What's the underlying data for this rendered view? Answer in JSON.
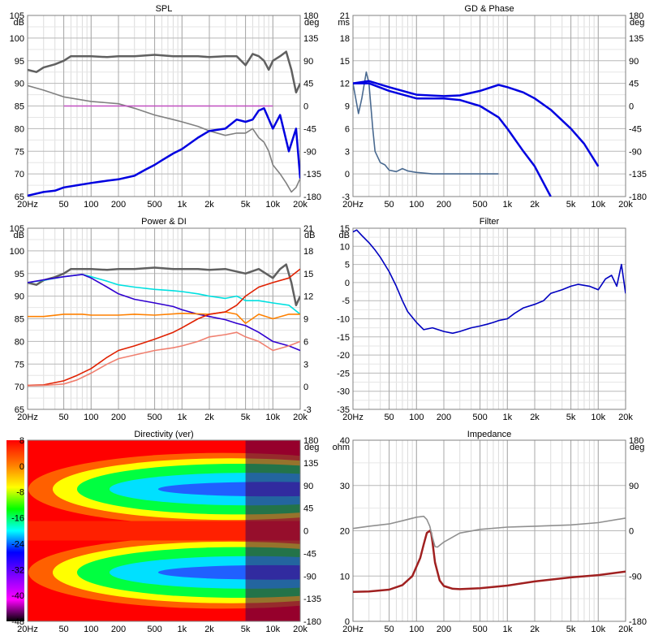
{
  "x_ticks": [
    "20Hz",
    "50",
    "100",
    "200",
    "500",
    "1k",
    "2k",
    "5k",
    "10k",
    "20k"
  ],
  "chart_data": [
    {
      "type": "line",
      "title": "SPL",
      "left_unit": "dB",
      "right_unit": "deg",
      "xlim": [
        20,
        20000
      ],
      "xscale": "log",
      "ylim": [
        65,
        105
      ],
      "yticks_left": [
        "65",
        "70",
        "75",
        "80",
        "85",
        "90",
        "95",
        "100",
        "105"
      ],
      "yticks_right": [
        "-180",
        "-135",
        "-90",
        "-45",
        "0",
        "45",
        "90",
        "135",
        "180"
      ],
      "grid": true,
      "series": [
        {
          "color": "#606060",
          "x": [
            20,
            25,
            30,
            40,
            50,
            60,
            80,
            100,
            150,
            200,
            300,
            500,
            800,
            1000,
            1500,
            2000,
            3000,
            4000,
            5000,
            6000,
            7000,
            8000,
            9000,
            10000,
            12000,
            14000,
            16000,
            18000,
            20000
          ],
          "y": [
            93,
            92.5,
            93.5,
            94.2,
            95,
            96,
            96,
            96,
            95.8,
            96,
            96,
            96.3,
            96,
            96,
            96,
            95.8,
            96,
            96,
            94,
            96.5,
            96,
            95,
            93,
            95,
            96,
            97,
            93,
            88,
            90
          ]
        },
        {
          "color": "#808080",
          "x": [
            20,
            30,
            50,
            100,
            200,
            300,
            500,
            800,
            1000,
            1500,
            2000,
            3000,
            4000,
            5000,
            6000,
            7000,
            8000,
            9000,
            10000,
            12000,
            14000,
            16000,
            18000,
            20000
          ],
          "y": [
            89.5,
            88.5,
            87,
            86,
            85.5,
            84.5,
            83,
            82,
            81.5,
            80.5,
            79.5,
            78.5,
            79,
            79,
            80,
            78,
            77,
            75,
            72,
            70,
            68,
            66,
            67,
            69
          ]
        },
        {
          "color": "#c050c0",
          "x": [
            50,
            10000
          ],
          "y": [
            85,
            85
          ]
        },
        {
          "color": "#0000e0",
          "x": [
            20,
            30,
            40,
            50,
            70,
            100,
            150,
            200,
            300,
            400,
            500,
            600,
            800,
            1000,
            1500,
            2000,
            3000,
            4000,
            5000,
            6000,
            7000,
            8000,
            10000,
            12000,
            15000,
            18000,
            20000
          ],
          "y": [
            65.2,
            66,
            66.3,
            67,
            67.5,
            68,
            68.5,
            68.8,
            69.6,
            71,
            72,
            73,
            74.5,
            75.5,
            78,
            79.5,
            80,
            82,
            81.5,
            82,
            84,
            84.5,
            80,
            83,
            75,
            80,
            69
          ]
        }
      ]
    },
    {
      "type": "line",
      "title": "GD & Phase",
      "left_unit": "ms",
      "right_unit": "deg",
      "xlim": [
        20,
        20000
      ],
      "xscale": "log",
      "ylim": [
        -3,
        21
      ],
      "yticks_left": [
        "-3",
        "0",
        "3",
        "6",
        "9",
        "12",
        "15",
        "18",
        "21"
      ],
      "yticks_right": [
        "-180",
        "-135",
        "-90",
        "-45",
        "0",
        "45",
        "90",
        "135",
        "180"
      ],
      "grid": true,
      "series": [
        {
          "color": "#4a6a90",
          "x": [
            20,
            23,
            25,
            28,
            30,
            33,
            35,
            40,
            45,
            50,
            60,
            70,
            80,
            100,
            150,
            200,
            300,
            500,
            800
          ],
          "y": [
            12,
            8,
            10,
            13.5,
            12,
            6,
            3,
            1.5,
            1.2,
            0.5,
            0.3,
            0.7,
            0.4,
            0.2,
            0,
            0,
            0,
            0,
            0
          ]
        },
        {
          "color": "#0000e0",
          "x": [
            20,
            30,
            50,
            100,
            200,
            300,
            500,
            800,
            1000,
            1500,
            2000,
            3000,
            5000,
            7000,
            10000
          ],
          "y": [
            12,
            12.3,
            11.5,
            10.5,
            10.3,
            10.4,
            11,
            11.8,
            11.5,
            10.8,
            10,
            8.5,
            6,
            4,
            1
          ]
        },
        {
          "color": "#0000e0",
          "x": [
            20,
            30,
            50,
            100,
            200,
            300,
            500,
            800,
            1000,
            1500,
            2000,
            3000
          ],
          "y": [
            12,
            12,
            11,
            10,
            10,
            9.8,
            9,
            7.5,
            6,
            3,
            1,
            -3
          ]
        }
      ]
    },
    {
      "type": "line",
      "title": "Power & DI",
      "left_unit": "dB",
      "right_unit": "dB",
      "xlim": [
        20,
        20000
      ],
      "xscale": "log",
      "ylim": [
        65,
        105
      ],
      "yticks_left": [
        "65",
        "70",
        "75",
        "80",
        "85",
        "90",
        "95",
        "100",
        "105"
      ],
      "yticks_right": [
        "-3",
        "0",
        "3",
        "6",
        "9",
        "12",
        "15",
        "18",
        "21"
      ],
      "grid": true,
      "series": [
        {
          "color": "#606060",
          "x": [
            20,
            25,
            30,
            40,
            50,
            60,
            80,
            100,
            150,
            200,
            300,
            500,
            800,
            1000,
            1500,
            2000,
            3000,
            5000,
            7000,
            10000,
            12000,
            14000,
            16000,
            18000,
            20000
          ],
          "y": [
            93,
            92.5,
            93.5,
            94.2,
            95,
            96,
            96,
            96,
            95.8,
            96,
            96,
            96.3,
            96,
            96,
            96,
            95.8,
            96,
            95,
            96,
            94,
            96,
            97,
            93,
            88,
            90
          ]
        },
        {
          "color": "#00e0e0",
          "x": [
            20,
            30,
            50,
            80,
            100,
            150,
            200,
            300,
            500,
            800,
            1000,
            1500,
            2000,
            3000,
            4000,
            5000,
            7000,
            10000,
            15000,
            20000
          ],
          "y": [
            93,
            93.5,
            94.3,
            94.8,
            94.3,
            93.3,
            92.5,
            92,
            91.5,
            91.2,
            91,
            90.5,
            90,
            89.5,
            90,
            89,
            89,
            88.5,
            88,
            86
          ]
        },
        {
          "color": "#3000d0",
          "x": [
            20,
            30,
            50,
            80,
            100,
            150,
            200,
            300,
            500,
            800,
            1000,
            1500,
            2000,
            3000,
            4000,
            5000,
            7000,
            10000,
            15000,
            20000
          ],
          "y": [
            93,
            93.6,
            94.3,
            94.8,
            94,
            92,
            90.5,
            89.3,
            88.5,
            87.7,
            87,
            86,
            85.5,
            84.8,
            84,
            83.5,
            82,
            80,
            79,
            78
          ]
        },
        {
          "color": "#ff8000",
          "x": [
            20,
            30,
            50,
            80,
            100,
            200,
            300,
            500,
            1000,
            2000,
            3000,
            4000,
            5000,
            7000,
            10000,
            15000,
            20000
          ],
          "y": [
            85.5,
            85.5,
            86,
            86,
            85.8,
            85.8,
            86,
            85.8,
            86.2,
            86,
            86.5,
            86,
            84,
            86,
            85,
            86,
            86
          ]
        },
        {
          "color": "#e02000",
          "x": [
            20,
            30,
            50,
            70,
            100,
            150,
            200,
            300,
            500,
            800,
            1000,
            1500,
            2000,
            3000,
            4000,
            5000,
            7000,
            10000,
            15000,
            20000
          ],
          "y": [
            70.3,
            70.4,
            71.3,
            72.5,
            74,
            76.5,
            78,
            79,
            80.5,
            82,
            83,
            85,
            86,
            86.5,
            88,
            90,
            92,
            93,
            94,
            96
          ]
        },
        {
          "color": "#f08070",
          "x": [
            20,
            30,
            50,
            70,
            100,
            150,
            200,
            300,
            500,
            800,
            1000,
            1500,
            2000,
            3000,
            4000,
            5000,
            7000,
            10000,
            15000,
            20000
          ],
          "y": [
            70.2,
            70.3,
            70.6,
            71.5,
            73,
            75,
            76.2,
            77,
            78,
            78.6,
            79,
            80,
            81,
            81.5,
            82,
            81,
            80,
            78,
            79,
            80
          ]
        }
      ]
    },
    {
      "type": "line",
      "title": "Filter",
      "left_unit": "dB",
      "right_unit": "",
      "xlim": [
        20,
        20000
      ],
      "xscale": "log",
      "ylim": [
        -35,
        15
      ],
      "yticks_left": [
        "-35",
        "-30",
        "-25",
        "-20",
        "-15",
        "-10",
        "-5",
        "0",
        "5",
        "10",
        "15"
      ],
      "yticks_right": [],
      "grid": true,
      "series": [
        {
          "color": "#0000c0",
          "x": [
            20,
            22,
            25,
            30,
            35,
            40,
            50,
            60,
            70,
            80,
            100,
            120,
            150,
            200,
            250,
            300,
            400,
            500,
            600,
            700,
            800,
            1000,
            1200,
            1500,
            2000,
            2500,
            3000,
            4000,
            5000,
            6000,
            8000,
            10000,
            12000,
            14000,
            16000,
            18000,
            20000
          ],
          "y": [
            14,
            14.5,
            13,
            11,
            9,
            7,
            3,
            -1,
            -5,
            -8,
            -11,
            -13,
            -12.5,
            -13.5,
            -14,
            -13.5,
            -12.5,
            -12,
            -11.5,
            -11,
            -10.5,
            -10,
            -8.5,
            -7,
            -6,
            -5,
            -3,
            -2,
            -1,
            -0.5,
            -1,
            -2,
            1,
            2,
            -1,
            5,
            -3
          ]
        }
      ]
    },
    {
      "type": "heatmap",
      "title": "Directivity (ver)",
      "left_unit": "",
      "right_unit": "deg",
      "xlim": [
        20,
        20000
      ],
      "xscale": "log",
      "ylim": [
        -180,
        180
      ],
      "yticks_left": [
        "-48",
        "-40",
        "-32",
        "-24",
        "-16",
        "-8",
        "0",
        "8"
      ],
      "yticks_right": [
        "-180",
        "-135",
        "-90",
        "-45",
        "0",
        "45",
        "90",
        "135",
        "180"
      ],
      "color_scale": [
        "#ff0000",
        "#ff8000",
        "#ffff00",
        "#00ff00",
        "#00ffff",
        "#0000ff",
        "#8000ff",
        "#ff00ff",
        "#000000"
      ],
      "color_range": [
        -48,
        8
      ],
      "grid": false
    },
    {
      "type": "line",
      "title": "Impedance",
      "left_unit": "ohm",
      "right_unit": "deg",
      "xlim": [
        20,
        20000
      ],
      "xscale": "log",
      "ylim": [
        0,
        40
      ],
      "yticks_left": [
        "0",
        "10",
        "20",
        "30",
        "40"
      ],
      "yticks_right": [
        "-180",
        "-90",
        "0",
        "90",
        "180"
      ],
      "grid": true,
      "series": [
        {
          "color": "#a02020",
          "x": [
            20,
            30,
            50,
            70,
            90,
            110,
            120,
            130,
            140,
            145,
            150,
            160,
            180,
            200,
            250,
            300,
            500,
            1000,
            2000,
            5000,
            10000,
            20000
          ],
          "y": [
            6.5,
            6.6,
            7,
            8,
            10,
            14,
            17,
            19.5,
            20,
            19.5,
            17.5,
            13,
            9,
            7.8,
            7.2,
            7.1,
            7.3,
            7.9,
            8.8,
            9.7,
            10.2,
            11
          ]
        },
        {
          "color": "#909090",
          "x": [
            20,
            30,
            50,
            70,
            100,
            120,
            130,
            140,
            150,
            160,
            170,
            200,
            300,
            500,
            1000,
            2000,
            5000,
            10000,
            20000
          ],
          "y": [
            20.5,
            21,
            21.5,
            22.2,
            23,
            23.2,
            22.5,
            21,
            18.5,
            16.5,
            16.4,
            17.5,
            19.5,
            20.3,
            20.8,
            21,
            21.3,
            21.8,
            22.8
          ]
        }
      ]
    }
  ]
}
